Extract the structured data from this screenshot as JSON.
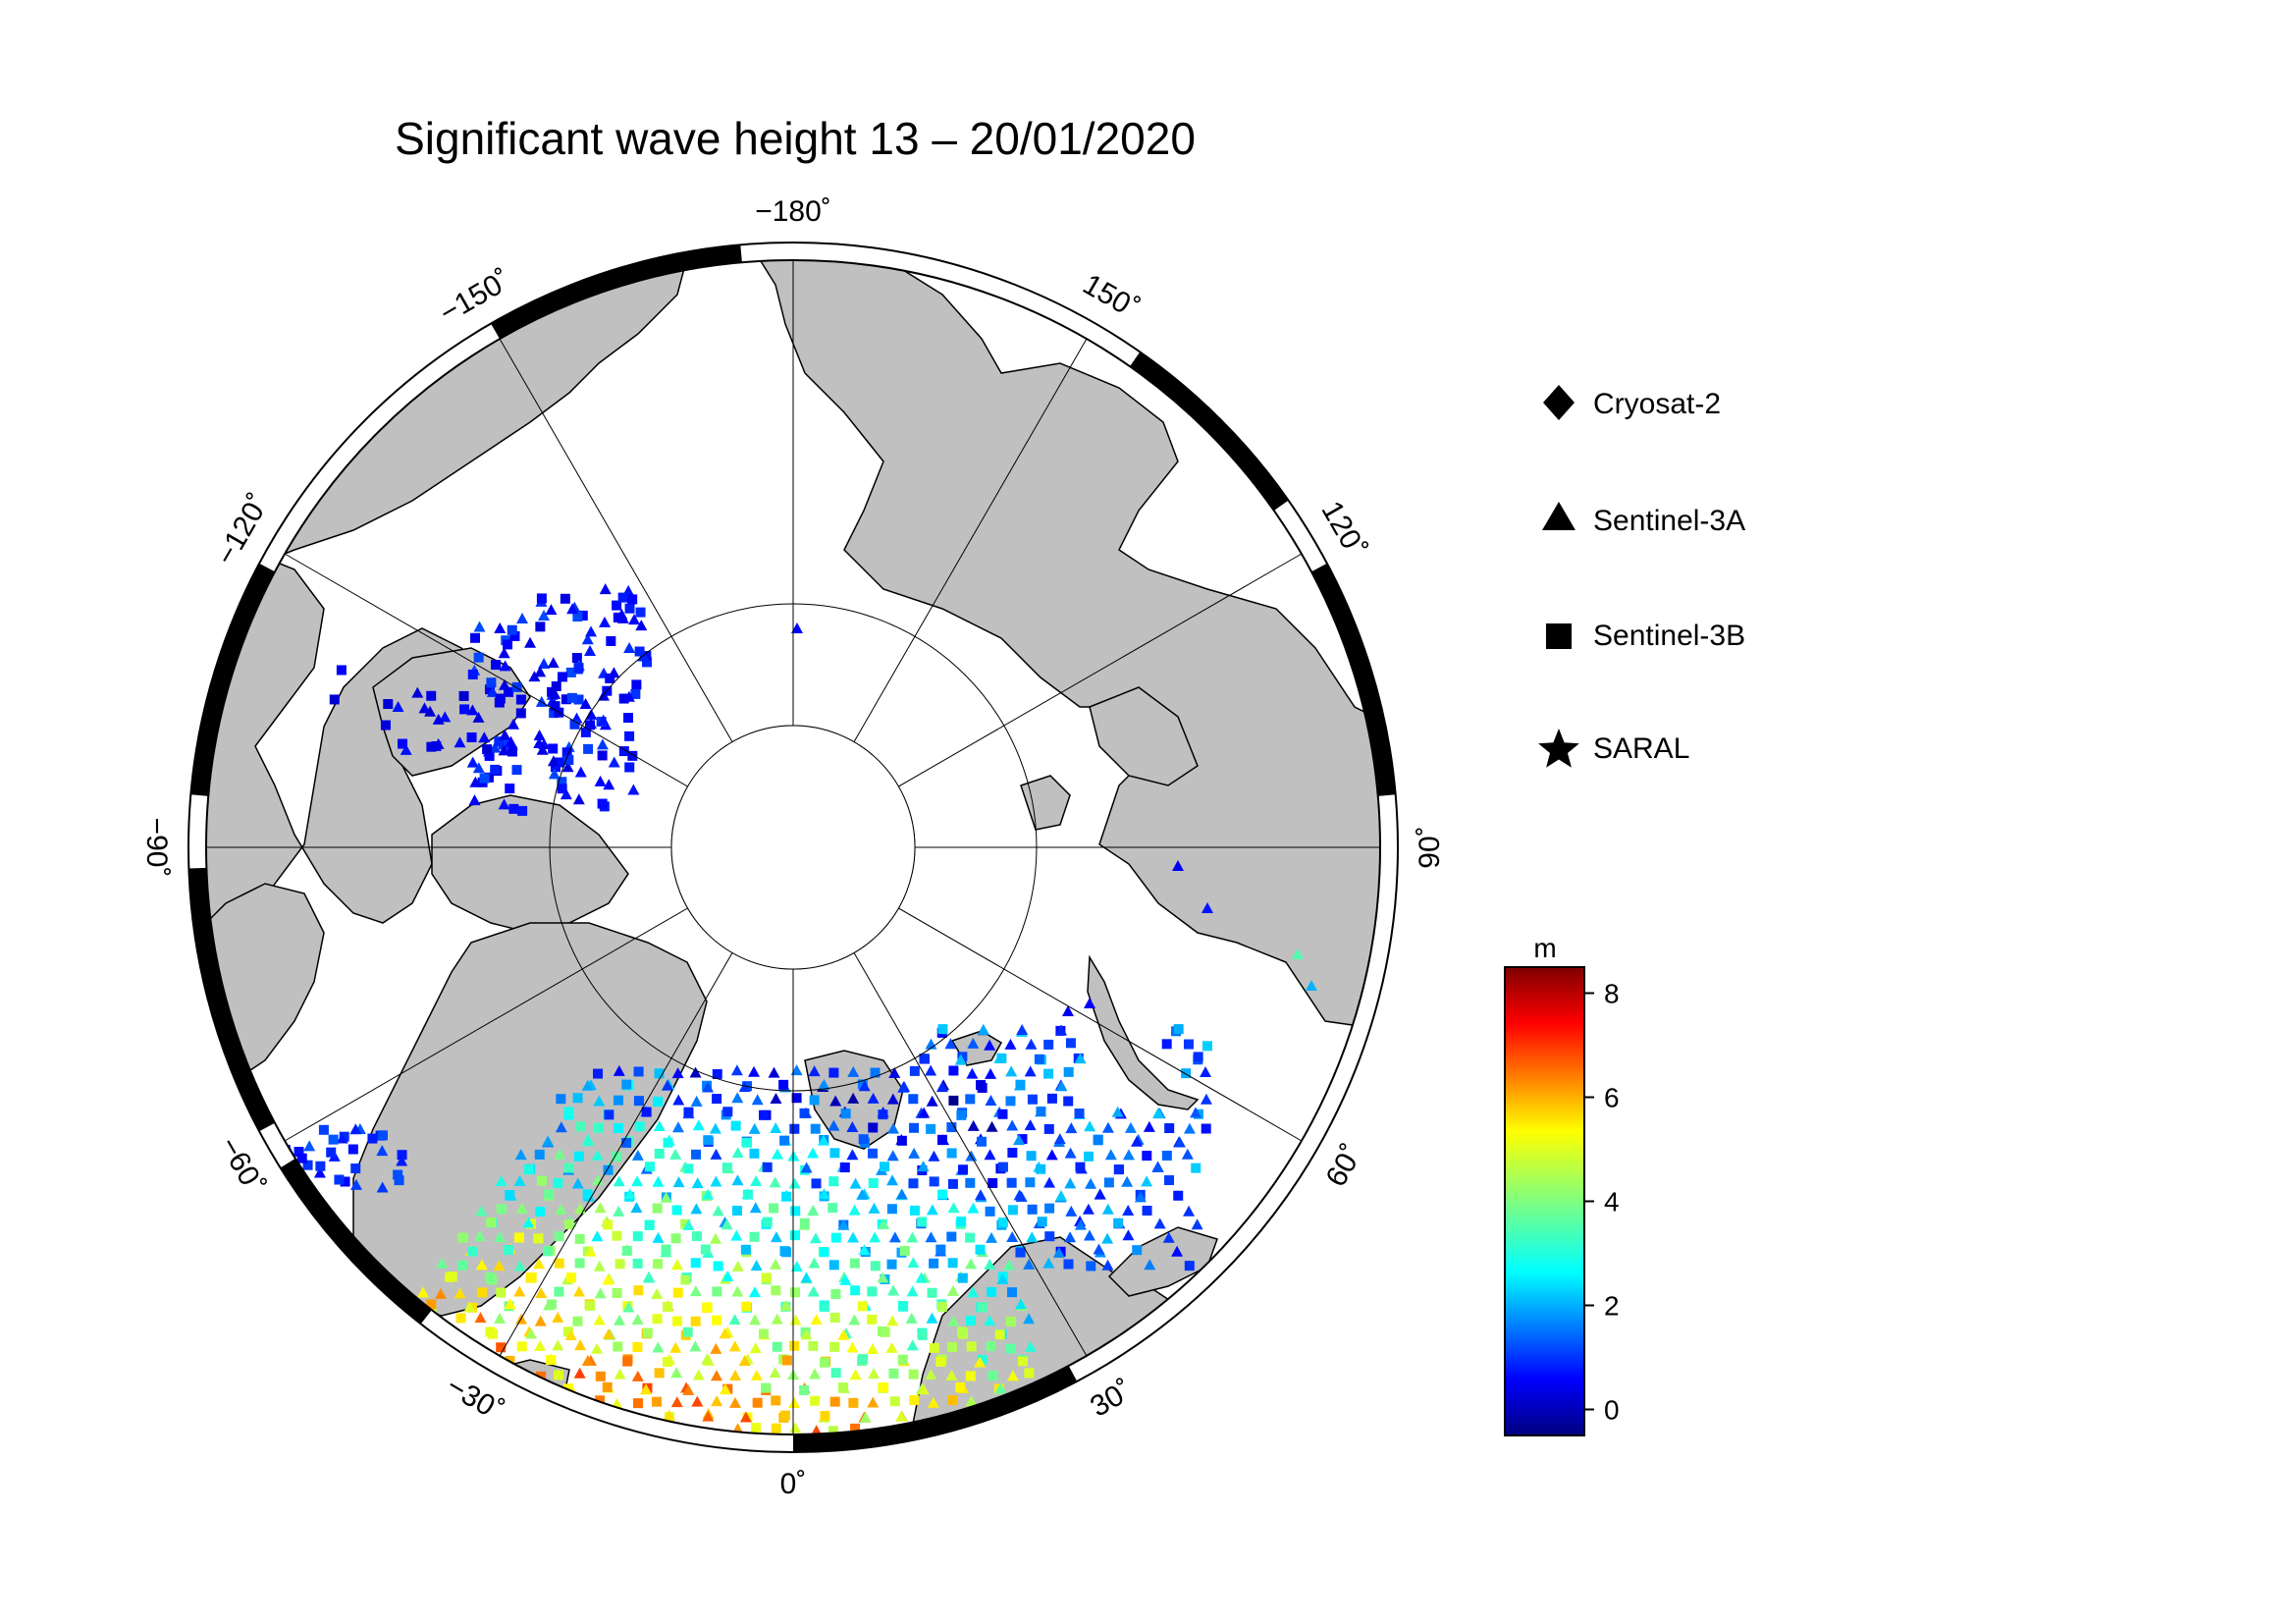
{
  "map": {
    "title": "Significant wave height 13 – 20/01/2020",
    "projection": "north-polar-stereographic",
    "longitude_labels": [
      {
        "lon": -180,
        "text": "−180˚"
      },
      {
        "lon": 150,
        "text": "150˚"
      },
      {
        "lon": 120,
        "text": "120˚"
      },
      {
        "lon": 90,
        "text": "90˚"
      },
      {
        "lon": 60,
        "text": "60˚"
      },
      {
        "lon": 30,
        "text": "30˚"
      },
      {
        "lon": 0,
        "text": "0˚"
      },
      {
        "lon": -30,
        "text": "−30˚"
      },
      {
        "lon": -60,
        "text": "−60˚"
      },
      {
        "lon": -90,
        "text": "−90˚"
      },
      {
        "lon": -120,
        "text": "−120˚"
      },
      {
        "lon": -150,
        "text": "−150˚"
      }
    ],
    "colors": {
      "land": "#c0c0c0",
      "ocean": "#ffffff",
      "coast": "#000000",
      "frame": "#000000"
    }
  },
  "legend": {
    "items": [
      {
        "label": "Cryosat-2",
        "symbol": "diamond"
      },
      {
        "label": "Sentinel-3A",
        "symbol": "triangle"
      },
      {
        "label": "Sentinel-3B",
        "symbol": "square"
      },
      {
        "label": "SARAL",
        "symbol": "star"
      }
    ]
  },
  "colorbar": {
    "unit": "m",
    "min": -0.5,
    "max": 8.5,
    "ticks": [
      0,
      2,
      4,
      6,
      8
    ],
    "colormap": "jet"
  }
}
